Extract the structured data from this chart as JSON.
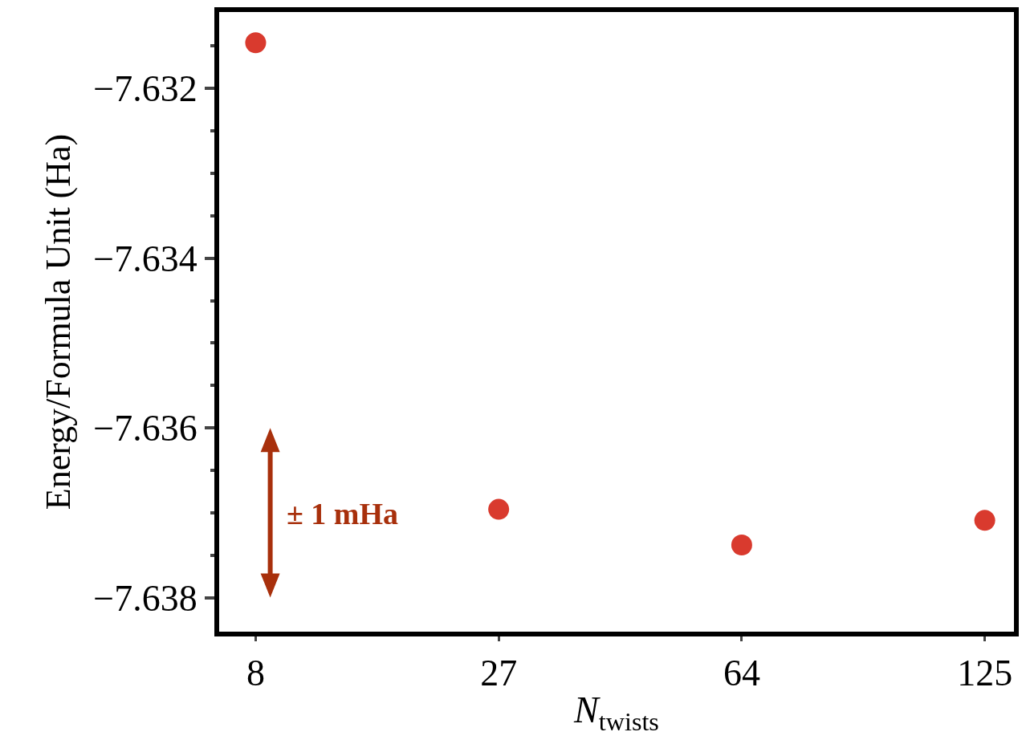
{
  "chart_data": {
    "type": "scatter",
    "xlabel": "N$_{twists}$",
    "ylabel": "Energy/Formula Unit (Ha)",
    "categories": [
      "8",
      "27",
      "64",
      "125"
    ],
    "series": [
      {
        "color": "#d93a2e",
        "values": [
          -7.63146,
          -7.63696,
          -7.63738,
          -7.63709
        ]
      }
    ],
    "ylim": [
      -7.63843,
      -7.63107
    ],
    "yticks": [
      {
        "value": -7.638,
        "label": "−7.638"
      },
      {
        "value": -7.636,
        "label": "−7.636"
      },
      {
        "value": -7.634,
        "label": "−7.634"
      },
      {
        "value": -7.632,
        "label": "−7.632"
      }
    ],
    "annotations": [
      "± 1 mHa"
    ],
    "marker": "circle",
    "grid": false,
    "legend": false
  }
}
